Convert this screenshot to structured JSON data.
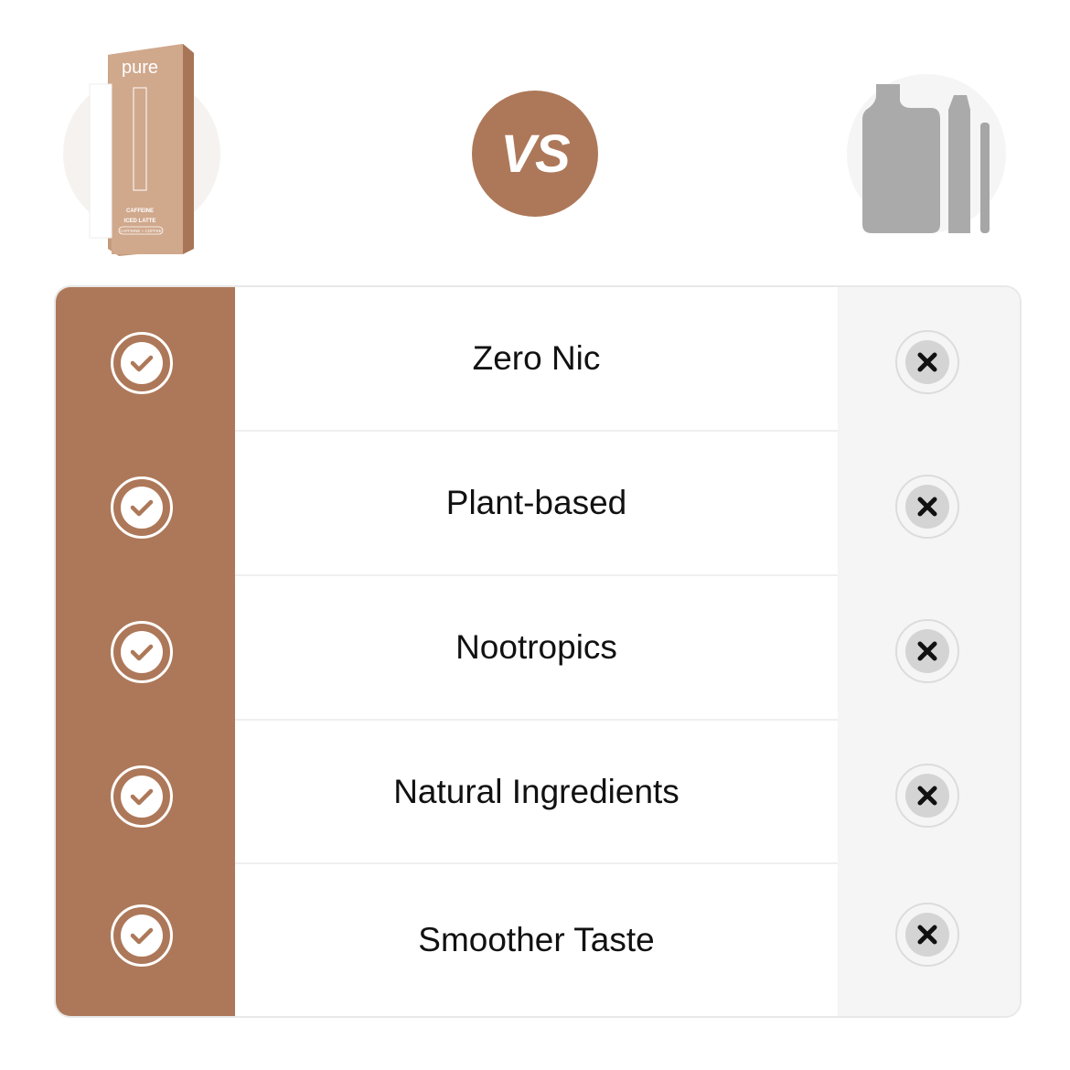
{
  "header": {
    "vs_label": "VS",
    "our_product": {
      "brand": "pure",
      "line1": "CAFFEINE",
      "line2": "ICED LATTE",
      "line3": "CAFFEINE + COFFEE"
    },
    "competitor_icon": "generic-vape-devices-icon"
  },
  "colors": {
    "brand": "#ad7859",
    "competitor_bg": "#f5f5f5",
    "x_disk": "#d4d4d4"
  },
  "rows": [
    {
      "label": "Zero Nic",
      "ours": "check-icon",
      "theirs": "x-icon"
    },
    {
      "label": "Plant-based",
      "ours": "check-icon",
      "theirs": "x-icon"
    },
    {
      "label": "Nootropics",
      "ours": "check-icon",
      "theirs": "x-icon"
    },
    {
      "label": "Natural Ingredients",
      "ours": "check-icon",
      "theirs": "x-icon"
    },
    {
      "label": "Smoother Taste",
      "ours": "check-icon",
      "theirs": "x-icon"
    }
  ]
}
